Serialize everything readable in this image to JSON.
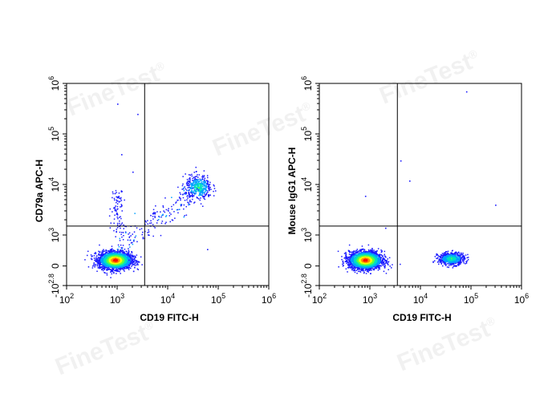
{
  "watermark": "FineTest",
  "watermark_mark": "®",
  "colors": {
    "density_ramp": [
      "#1a1aff",
      "#00a0ff",
      "#00e0c0",
      "#60ff40",
      "#ffff00",
      "#ff9000",
      "#ff1000"
    ],
    "gate_line": "#000000",
    "axis": "#000000"
  },
  "chart_data": [
    {
      "type": "scatter",
      "subtype": "flow-cytometry-density-dot-plot",
      "xlabel": "CD19 FITC-H",
      "ylabel": "CD79a APC-H",
      "x_scale": "biexponential",
      "y_scale": "biexponential",
      "xlim": [
        100,
        1000000
      ],
      "ylim": [
        -631,
        1000000
      ],
      "x_ticks": [
        {
          "base": "10",
          "exp": "2",
          "value": 100
        },
        {
          "base": "10",
          "exp": "3",
          "value": 1000
        },
        {
          "base": "10",
          "exp": "4",
          "value": 10000
        },
        {
          "base": "10",
          "exp": "5",
          "value": 100000
        },
        {
          "base": "10",
          "exp": "6",
          "value": 1000000
        }
      ],
      "y_ticks": [
        {
          "base": "-10",
          "exp": "2.8",
          "value": -631
        },
        {
          "base": "",
          "exp": "",
          "label": "0",
          "value": 0
        },
        {
          "base": "10",
          "exp": "3",
          "value": 1000
        },
        {
          "base": "10",
          "exp": "4",
          "value": 10000
        },
        {
          "base": "10",
          "exp": "5",
          "value": 100000
        },
        {
          "base": "10",
          "exp": "6",
          "value": 1000000
        }
      ],
      "gate": {
        "x": 3500,
        "y": 1500
      },
      "populations": [
        {
          "cx": 900,
          "cy": 200,
          "count": 2600
        },
        {
          "cx": 40000,
          "cy": 9000,
          "count": 400
        }
      ],
      "sparse_events": [
        {
          "x": 1000,
          "y": 400000
        },
        {
          "x": 2500,
          "y": 250000
        },
        {
          "x": 60000,
          "y": 550
        },
        {
          "x": 4500,
          "y": 2500
        },
        {
          "x": 1200,
          "y": 40000
        },
        {
          "x": 2000,
          "y": 18000
        }
      ],
      "grid": false,
      "legend": "none"
    },
    {
      "type": "scatter",
      "subtype": "flow-cytometry-density-dot-plot",
      "xlabel": "CD19 FITC-H",
      "ylabel": "Mouse IgG1 APC-H",
      "x_scale": "biexponential",
      "y_scale": "biexponential",
      "xlim": [
        100,
        1000000
      ],
      "ylim": [
        -631,
        1000000
      ],
      "x_ticks": [
        {
          "base": "10",
          "exp": "2",
          "value": 100
        },
        {
          "base": "10",
          "exp": "3",
          "value": 1000
        },
        {
          "base": "10",
          "exp": "4",
          "value": 10000
        },
        {
          "base": "10",
          "exp": "5",
          "value": 100000
        },
        {
          "base": "10",
          "exp": "6",
          "value": 1000000
        }
      ],
      "y_ticks": [
        {
          "base": "-10",
          "exp": "2.8",
          "value": -631
        },
        {
          "base": "",
          "exp": "",
          "label": "0",
          "value": 0
        },
        {
          "base": "10",
          "exp": "3",
          "value": 1000
        },
        {
          "base": "10",
          "exp": "4",
          "value": 10000
        },
        {
          "base": "10",
          "exp": "5",
          "value": 100000
        },
        {
          "base": "10",
          "exp": "6",
          "value": 1000000
        }
      ],
      "gate": {
        "x": 3500,
        "y": 1500
      },
      "populations": [
        {
          "cx": 800,
          "cy": 200,
          "count": 2600
        },
        {
          "cx": 40000,
          "cy": 250,
          "count": 600
        }
      ],
      "sparse_events": [
        {
          "x": 80000,
          "y": 700000
        },
        {
          "x": 4000,
          "y": 30000
        },
        {
          "x": 6000,
          "y": 12000
        },
        {
          "x": 300000,
          "y": 4000
        },
        {
          "x": 800,
          "y": 6000
        },
        {
          "x": 2000,
          "y": 1400
        }
      ],
      "grid": false,
      "legend": "none"
    }
  ]
}
